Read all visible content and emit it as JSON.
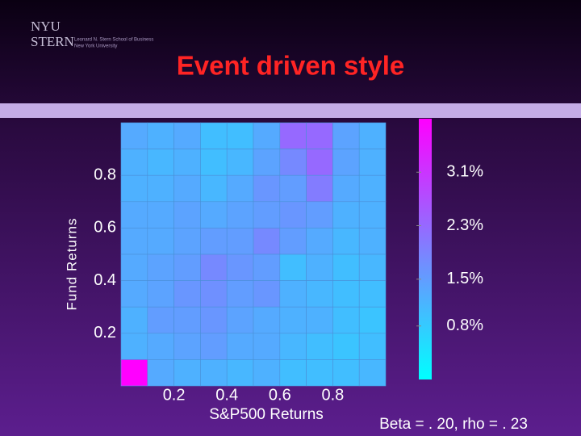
{
  "header": {
    "logo_top": "NYU",
    "logo_bottom": "STERN",
    "school": "Leonard N. Stern School of Business",
    "university": "New York University"
  },
  "chart_data": {
    "type": "heatmap",
    "title": "Event driven style",
    "xlabel": "S&P500 Returns",
    "ylabel": "Fund Returns",
    "note": "Beta = . 20, rho = . 23",
    "xlim": [
      0,
      1
    ],
    "ylim": [
      0,
      1
    ],
    "xticks": [
      0.2,
      0.4,
      0.6,
      0.8
    ],
    "yticks": [
      0.2,
      0.4,
      0.6,
      0.8
    ],
    "colormap": [
      "#00ffff",
      "#ff00ff"
    ],
    "clim": [
      0,
      3.9
    ],
    "cticks": [
      {
        "value": 0.8,
        "label": "0.8%"
      },
      {
        "value": 1.5,
        "label": "1.5%"
      },
      {
        "value": 2.3,
        "label": "2.3%"
      },
      {
        "value": 3.1,
        "label": "3.1%"
      }
    ],
    "values": [
      [
        1.3,
        1.2,
        1.3,
        1.0,
        1.0,
        1.3,
        2.3,
        2.3,
        1.4,
        1.2
      ],
      [
        1.2,
        1.1,
        1.2,
        1.0,
        1.1,
        1.4,
        1.8,
        2.3,
        1.4,
        1.2
      ],
      [
        1.2,
        1.2,
        1.3,
        1.1,
        1.3,
        1.6,
        1.5,
        2.0,
        1.3,
        1.2
      ],
      [
        1.3,
        1.3,
        1.4,
        1.3,
        1.4,
        1.5,
        1.6,
        1.5,
        1.2,
        1.2
      ],
      [
        1.3,
        1.3,
        1.4,
        1.5,
        1.5,
        1.8,
        1.5,
        1.3,
        1.1,
        1.2
      ],
      [
        1.3,
        1.4,
        1.5,
        1.8,
        1.6,
        1.5,
        1.0,
        1.2,
        1.0,
        1.1
      ],
      [
        1.3,
        1.4,
        1.6,
        1.7,
        1.5,
        1.6,
        1.2,
        1.1,
        1.0,
        1.0
      ],
      [
        1.2,
        1.5,
        1.5,
        1.6,
        1.4,
        1.3,
        1.2,
        1.2,
        1.0,
        0.9
      ],
      [
        1.2,
        1.3,
        1.4,
        1.5,
        1.3,
        1.3,
        1.1,
        1.0,
        0.9,
        1.0
      ],
      [
        3.9,
        1.3,
        1.2,
        1.2,
        1.1,
        1.2,
        1.0,
        1.0,
        1.0,
        1.1
      ]
    ]
  }
}
